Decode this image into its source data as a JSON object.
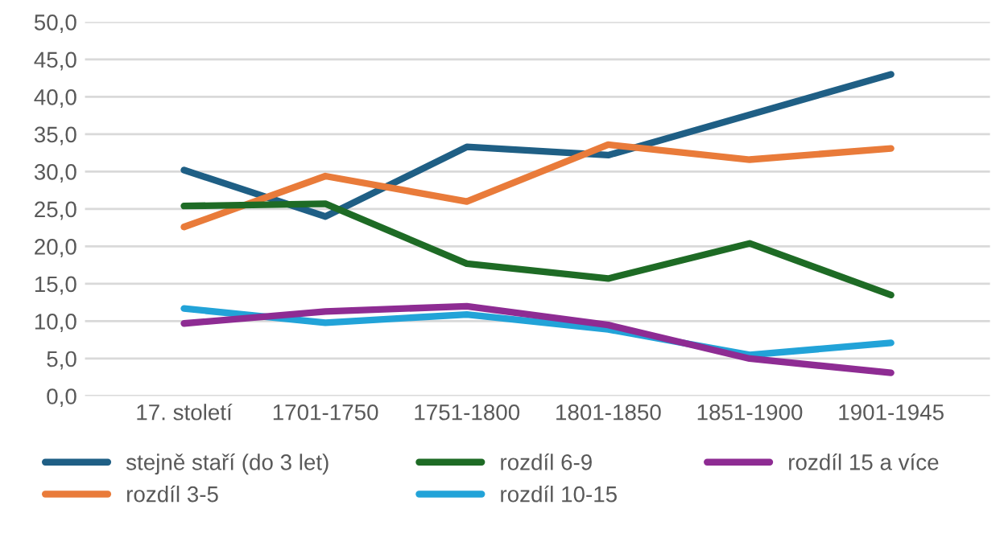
{
  "chart_data": {
    "type": "line",
    "categories": [
      "17. století",
      "1701-1750",
      "1751-1800",
      "1801-1850",
      "1851-1900",
      "1901-1945"
    ],
    "series": [
      {
        "name": "stejně staří (do 3 let)",
        "color": "#1f5f85",
        "values": [
          30.2,
          24.0,
          33.3,
          32.2,
          37.6,
          43.0
        ]
      },
      {
        "name": "rozdíl 3-5",
        "color": "#e97b3a",
        "values": [
          22.6,
          29.4,
          26.0,
          33.6,
          31.6,
          33.1
        ]
      },
      {
        "name": "rozdíl 6-9",
        "color": "#1e6b25",
        "values": [
          25.4,
          25.7,
          17.7,
          15.7,
          20.4,
          13.5
        ]
      },
      {
        "name": "rozdíl 10-15",
        "color": "#22a3d8",
        "values": [
          11.7,
          9.8,
          10.9,
          8.9,
          5.5,
          7.1
        ]
      },
      {
        "name": "rozdíl 15 a více",
        "color": "#8e2c93",
        "values": [
          9.7,
          11.3,
          12.0,
          9.5,
          5.0,
          3.1
        ]
      }
    ],
    "ylim": [
      0,
      50
    ],
    "yticks": [
      {
        "value": 0,
        "label": "0,0"
      },
      {
        "value": 5,
        "label": "5,0"
      },
      {
        "value": 10,
        "label": "10,0"
      },
      {
        "value": 15,
        "label": "15,0"
      },
      {
        "value": 20,
        "label": "20,0"
      },
      {
        "value": 25,
        "label": "25,0"
      },
      {
        "value": 30,
        "label": "30,0"
      },
      {
        "value": 35,
        "label": "35,0"
      },
      {
        "value": 40,
        "label": "40,0"
      },
      {
        "value": 45,
        "label": "45,0"
      },
      {
        "value": 50,
        "label": "50,0"
      }
    ],
    "grid": "y",
    "legend": "bottom",
    "marker": "none",
    "line_style": "solid"
  }
}
